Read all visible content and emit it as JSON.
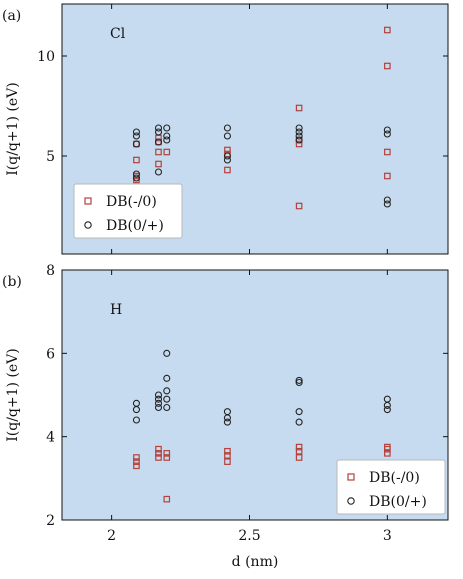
{
  "chart_data": [
    {
      "type": "scatter",
      "panel_label": "(a)",
      "annotation": "Cl",
      "ylabel": "I(q/q+1) (eV)",
      "y_inverted": true,
      "ylim": [
        12.6,
        0.1
      ],
      "xlim": [
        1.82,
        3.22
      ],
      "yticks": [
        5,
        10
      ],
      "shaded_band_color": "#c6dbef",
      "bands": {
        "upper": [
          [
            1.82,
            4.7
          ],
          [
            3.22,
            5.0
          ]
        ],
        "lower": [
          [
            1.82,
            7.7
          ],
          [
            3.22,
            6.7
          ]
        ]
      },
      "legend": {
        "position": "bottom-left",
        "entries": [
          "DB(-/0)",
          "DB(0/+)"
        ]
      },
      "series": [
        {
          "name": "DB(-/0)",
          "marker": "square",
          "color": "#b5413a",
          "points": [
            [
              2.09,
              3.8
            ],
            [
              2.09,
              4.0
            ],
            [
              2.09,
              4.8
            ],
            [
              2.09,
              5.6
            ],
            [
              2.17,
              3.1
            ],
            [
              2.17,
              4.6
            ],
            [
              2.17,
              5.2
            ],
            [
              2.17,
              5.7
            ],
            [
              2.17,
              5.9
            ],
            [
              2.2,
              3.4
            ],
            [
              2.2,
              5.2
            ],
            [
              2.42,
              4.3
            ],
            [
              2.42,
              5.1
            ],
            [
              2.42,
              5.3
            ],
            [
              2.68,
              2.5
            ],
            [
              2.68,
              5.6
            ],
            [
              2.68,
              5.8
            ],
            [
              2.68,
              7.4
            ],
            [
              3.0,
              4.0
            ],
            [
              3.0,
              5.2
            ],
            [
              3.0,
              9.5
            ],
            [
              3.0,
              11.3
            ]
          ]
        },
        {
          "name": "DB(0/+)",
          "marker": "circle",
          "color": "#222222",
          "points": [
            [
              2.09,
              3.9
            ],
            [
              2.09,
              4.1
            ],
            [
              2.09,
              5.6
            ],
            [
              2.09,
              6.0
            ],
            [
              2.09,
              6.2
            ],
            [
              2.17,
              4.2
            ],
            [
              2.17,
              5.7
            ],
            [
              2.17,
              6.2
            ],
            [
              2.17,
              6.4
            ],
            [
              2.2,
              5.8
            ],
            [
              2.2,
              6.0
            ],
            [
              2.2,
              6.4
            ],
            [
              2.42,
              4.8
            ],
            [
              2.42,
              5.0
            ],
            [
              2.42,
              6.0
            ],
            [
              2.42,
              6.4
            ],
            [
              2.68,
              5.8
            ],
            [
              2.68,
              6.0
            ],
            [
              2.68,
              6.2
            ],
            [
              2.68,
              6.4
            ],
            [
              3.0,
              2.6
            ],
            [
              3.0,
              2.8
            ],
            [
              3.0,
              6.1
            ],
            [
              3.0,
              6.3
            ]
          ]
        }
      ]
    },
    {
      "type": "scatter",
      "panel_label": "(b)",
      "annotation": "H",
      "xlabel": "d (nm)",
      "ylabel": "I(q/q+1) (eV)",
      "y_inverted": true,
      "ylim": [
        8,
        2
      ],
      "xlim": [
        1.82,
        3.22
      ],
      "xticks": [
        2,
        2.5,
        3
      ],
      "yticks": [
        2,
        4,
        6,
        8
      ],
      "shaded_band_color": "#c6dbef",
      "bands": {
        "upper": [
          [
            1.82,
            2.1
          ],
          [
            3.22,
            2.8
          ]
        ],
        "lower": [
          [
            1.82,
            6.3
          ],
          [
            3.22,
            5.55
          ]
        ]
      },
      "legend": {
        "position": "bottom-right",
        "entries": [
          "DB(-/0)",
          "DB(0/+)"
        ]
      },
      "series": [
        {
          "name": "DB(-/0)",
          "marker": "square",
          "color": "#b5413a",
          "points": [
            [
              2.09,
              3.3
            ],
            [
              2.09,
              3.4
            ],
            [
              2.09,
              3.5
            ],
            [
              2.17,
              3.5
            ],
            [
              2.17,
              3.6
            ],
            [
              2.17,
              3.7
            ],
            [
              2.2,
              2.5
            ],
            [
              2.2,
              3.5
            ],
            [
              2.2,
              3.6
            ],
            [
              2.42,
              3.4
            ],
            [
              2.42,
              3.55
            ],
            [
              2.42,
              3.65
            ],
            [
              2.68,
              3.5
            ],
            [
              2.68,
              3.65
            ],
            [
              2.68,
              3.75
            ],
            [
              3.0,
              3.6
            ],
            [
              3.0,
              3.7
            ],
            [
              3.0,
              3.75
            ]
          ]
        },
        {
          "name": "DB(0/+)",
          "marker": "circle",
          "color": "#222222",
          "points": [
            [
              2.09,
              4.4
            ],
            [
              2.09,
              4.65
            ],
            [
              2.09,
              4.8
            ],
            [
              2.17,
              4.7
            ],
            [
              2.17,
              4.8
            ],
            [
              2.17,
              4.9
            ],
            [
              2.17,
              5.0
            ],
            [
              2.2,
              4.7
            ],
            [
              2.2,
              4.9
            ],
            [
              2.2,
              5.1
            ],
            [
              2.2,
              5.4
            ],
            [
              2.2,
              6.0
            ],
            [
              2.42,
              4.35
            ],
            [
              2.42,
              4.45
            ],
            [
              2.42,
              4.6
            ],
            [
              2.68,
              4.35
            ],
            [
              2.68,
              4.6
            ],
            [
              2.68,
              5.3
            ],
            [
              2.68,
              5.35
            ],
            [
              3.0,
              4.65
            ],
            [
              3.0,
              4.75
            ],
            [
              3.0,
              4.9
            ]
          ]
        }
      ]
    }
  ]
}
